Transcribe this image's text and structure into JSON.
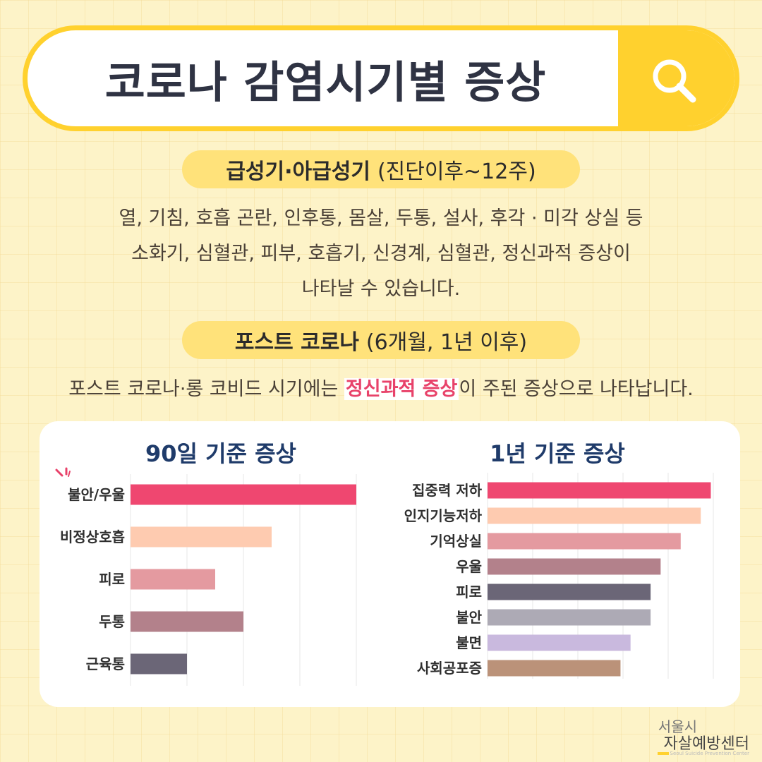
{
  "header": {
    "title": "코로나 감염시기별 증상",
    "search_icon": "search-icon",
    "accent": "#ffd12e"
  },
  "section1": {
    "title": "급성기·아급성기",
    "subtitle": "(진단이후~12주)",
    "lines": [
      "열, 기침, 호흡 곤란, 인후통, 몸살, 두통, 설사, 후각 · 미각 상실 등",
      "소화기, 심혈관, 피부, 호흡기, 신경계, 심혈관, 정신과적 증상이",
      "나타날 수 있습니다."
    ]
  },
  "section2": {
    "title": "포스트 코로나",
    "subtitle": "(6개월, 1년 이후)",
    "text_before": "포스트 코로나·롱 코비드 시기에는 ",
    "highlight": "정신과적 증상",
    "text_after": "이 주된 증상으로 나타납니다.",
    "highlight_color": "#e8426a"
  },
  "chart_data": [
    {
      "type": "bar",
      "orientation": "horizontal",
      "title": "90일 기준 증상",
      "categories": [
        "불안/우울",
        "비정상호흡",
        "피로",
        "두통",
        "근육통"
      ],
      "values": [
        8,
        5,
        3,
        4,
        2
      ],
      "xlim": [
        0,
        8
      ],
      "grid": true,
      "colors": [
        "#ef4770",
        "#fecbb0",
        "#e49aa0",
        "#b3818b",
        "#6b6677"
      ]
    },
    {
      "type": "bar",
      "orientation": "horizontal",
      "title": "1년 기준 증상",
      "categories": [
        "집중력 저하",
        "인지기능저하",
        "기억상실",
        "우울",
        "피로",
        "불안",
        "불면",
        "사회공포증"
      ],
      "values": [
        8.9,
        8.5,
        7.7,
        6.9,
        6.5,
        6.5,
        5.7,
        5.3
      ],
      "xlim": [
        0,
        9
      ],
      "grid": true,
      "colors": [
        "#ef4770",
        "#fecbb0",
        "#e49aa0",
        "#b3818b",
        "#6b6677",
        "#adaab5",
        "#c9b9de",
        "#bb9279"
      ]
    }
  ],
  "logo": {
    "line1": "서울시",
    "line2": "자살예방센터",
    "line3": "Seoul Suicide Prevention Center"
  }
}
